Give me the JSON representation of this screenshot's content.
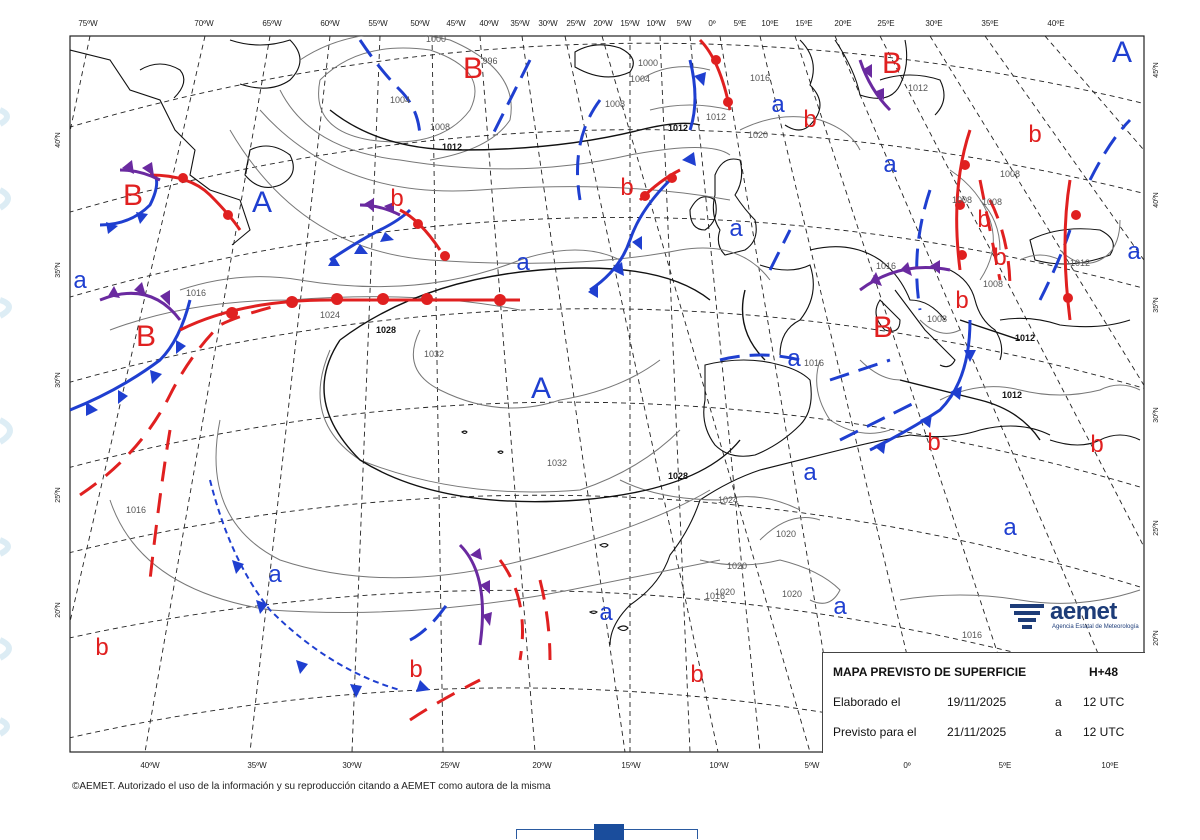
{
  "map": {
    "lon_labels_top": [
      "75ºW",
      "70ºW",
      "65ºW",
      "60ºW",
      "55ºW",
      "50ºW",
      "45ºW",
      "40ºW",
      "35ºW",
      "30ºW",
      "25ºW",
      "20ºW",
      "15ºW",
      "10ºW",
      "5ºW",
      "0º",
      "5ºE",
      "10ºE",
      "15ºE",
      "20ºE",
      "25ºE",
      "30ºE",
      "35ºE",
      "40ºE"
    ],
    "lon_labels_bottom": [
      "40ºW",
      "35ºW",
      "30ºW",
      "25ºW",
      "20ºW",
      "15ºW",
      "10ºW",
      "5ºW",
      "0º",
      "5ºE",
      "10ºE"
    ],
    "lat_labels_left": [
      "40ºN",
      "35ºN",
      "30ºN",
      "25ºN",
      "20ºN"
    ],
    "lat_labels_right": [
      "45ºN",
      "40ºN",
      "35ºN",
      "30ºN",
      "25ºN",
      "20ºN"
    ],
    "isobar_labels": [
      "1000",
      "996",
      "1004",
      "1008",
      "1012",
      "1000",
      "1004",
      "1008",
      "1012",
      "1016",
      "1016",
      "1020",
      "1024",
      "1028",
      "1032",
      "1032",
      "1028",
      "1024",
      "1020",
      "1020",
      "1020",
      "1020",
      "1016",
      "1016",
      "1016",
      "1012",
      "1008",
      "1008",
      "1008",
      "1012",
      "1012",
      "1016",
      "1012",
      "1008",
      "1012",
      "1008",
      "1016"
    ],
    "pressure_systems": [
      {
        "label": "A",
        "kind": "high"
      },
      {
        "label": "A",
        "kind": "high"
      },
      {
        "label": "A",
        "kind": "high"
      },
      {
        "label": "B",
        "kind": "low"
      },
      {
        "label": "B",
        "kind": "low"
      },
      {
        "label": "B",
        "kind": "low"
      },
      {
        "label": "B",
        "kind": "low"
      },
      {
        "label": "B",
        "kind": "low"
      },
      {
        "label": "a",
        "kind": "high"
      },
      {
        "label": "a",
        "kind": "high"
      },
      {
        "label": "a",
        "kind": "high"
      },
      {
        "label": "a",
        "kind": "high"
      },
      {
        "label": "a",
        "kind": "high"
      },
      {
        "label": "a",
        "kind": "high"
      },
      {
        "label": "a",
        "kind": "high"
      },
      {
        "label": "a",
        "kind": "high"
      },
      {
        "label": "a",
        "kind": "high"
      },
      {
        "label": "a",
        "kind": "high"
      },
      {
        "label": "a",
        "kind": "high"
      },
      {
        "label": "a",
        "kind": "high"
      },
      {
        "label": "b",
        "kind": "low"
      },
      {
        "label": "b",
        "kind": "low"
      },
      {
        "label": "b",
        "kind": "low"
      },
      {
        "label": "b",
        "kind": "low"
      },
      {
        "label": "b",
        "kind": "low"
      },
      {
        "label": "b",
        "kind": "low"
      },
      {
        "label": "b",
        "kind": "low"
      },
      {
        "label": "b",
        "kind": "low"
      },
      {
        "label": "b",
        "kind": "low"
      },
      {
        "label": "b",
        "kind": "low"
      },
      {
        "label": "b",
        "kind": "low"
      },
      {
        "label": "b",
        "kind": "low"
      }
    ]
  },
  "info": {
    "title": "MAPA PREVISTO DE SUPERFICIE",
    "horizon": "H+48",
    "made_label": "Elaborado el",
    "made_date": "19/11/2025",
    "made_sep": "a",
    "made_time": "12 UTC",
    "valid_label": "Previsto para el",
    "valid_date": "21/11/2025",
    "valid_sep": "a",
    "valid_time": "12 UTC"
  },
  "logo": {
    "name": "aemet",
    "subtitle": "Agencia Estatal de Meteorología"
  },
  "copyright": "©AEMET. Autorizado el uso de la información y su reproducción citando a AEMET como autora de la misma",
  "colors": {
    "cold_front": "#1f3fd0",
    "warm_front": "#e02020",
    "occluded_front": "#6a2aa0",
    "isobar": "#777777",
    "main_isobar": "#111111"
  }
}
